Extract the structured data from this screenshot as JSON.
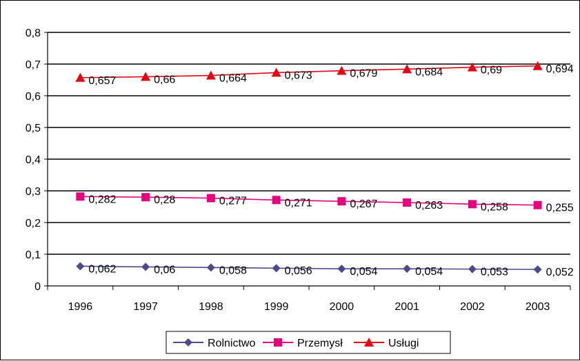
{
  "chart_data": {
    "type": "line",
    "title": "",
    "xlabel": "",
    "ylabel": "",
    "categories": [
      "1996",
      "1997",
      "1998",
      "1999",
      "2000",
      "2001",
      "2002",
      "2003"
    ],
    "ylim": [
      0,
      0.8
    ],
    "yticks": [
      0,
      0.1,
      0.2,
      0.3,
      0.4,
      0.5,
      0.6,
      0.7,
      0.8
    ],
    "ytick_labels": [
      "0",
      "0,1",
      "0,2",
      "0,3",
      "0,4",
      "0,5",
      "0,6",
      "0,7",
      "0,8"
    ],
    "grid": true,
    "legend_position": "bottom",
    "series": [
      {
        "name": "Rolnictwo",
        "marker": "diamond",
        "color": "#4B4B8C",
        "values": [
          0.062,
          0.06,
          0.058,
          0.056,
          0.054,
          0.054,
          0.053,
          0.052
        ],
        "labels": [
          "0,062",
          "0,06",
          "0,058",
          "0,056",
          "0,054",
          "0,054",
          "0,053",
          "0,052"
        ]
      },
      {
        "name": "Przemysł",
        "marker": "square",
        "color": "#E6007E",
        "values": [
          0.282,
          0.28,
          0.277,
          0.271,
          0.267,
          0.263,
          0.258,
          0.255
        ],
        "labels": [
          "0,282",
          "0,28",
          "0,277",
          "0,271",
          "0,267",
          "0,263",
          "0,258",
          "0,255"
        ]
      },
      {
        "name": "Usługi",
        "marker": "triangle",
        "color": "#E30613",
        "values": [
          0.657,
          0.66,
          0.664,
          0.673,
          0.679,
          0.684,
          0.69,
          0.694
        ],
        "labels": [
          "0,657",
          "0,66",
          "0,664",
          "0,673",
          "0,679",
          "0,684",
          "0,69",
          "0,694"
        ]
      }
    ]
  }
}
